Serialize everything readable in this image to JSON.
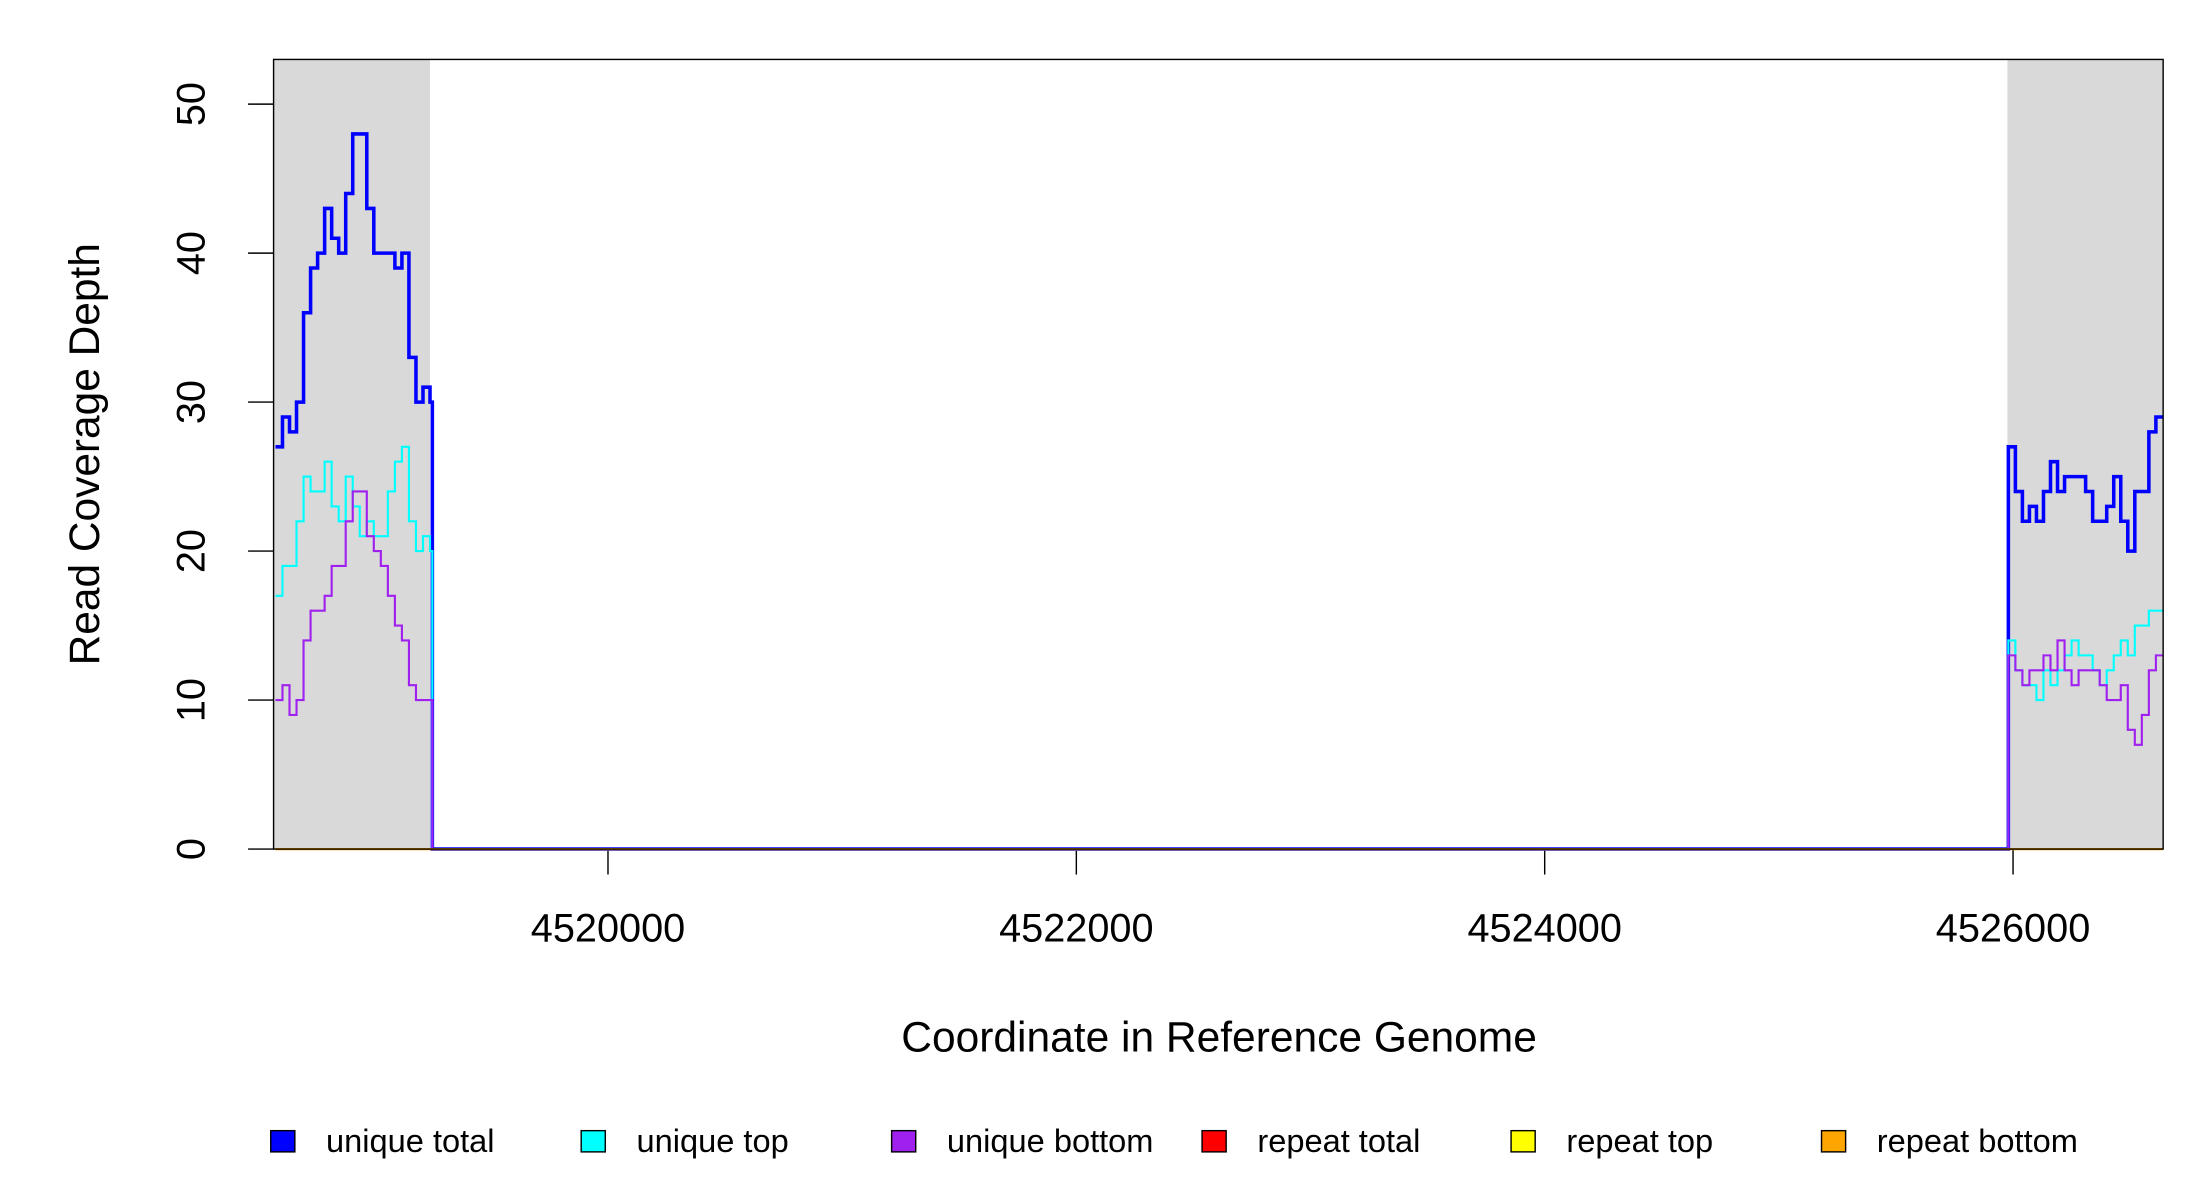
{
  "chart_data": {
    "type": "step",
    "xlabel": "Coordinate in Reference Genome",
    "ylabel": "Read Coverage Depth",
    "xlim": [
      4518572,
      4526641
    ],
    "ylim": [
      0,
      53
    ],
    "xticks": [
      4520000,
      4522000,
      4524000,
      4526000
    ],
    "yticks": [
      0,
      10,
      20,
      30,
      40,
      50
    ],
    "shaded_regions": [
      [
        4518572,
        4519240
      ],
      [
        4525976,
        4526641
      ]
    ],
    "shade_color": "#d9d9d9",
    "x": [
      4518580,
      4518610,
      4518640,
      4518670,
      4518700,
      4518730,
      4518760,
      4518790,
      4518820,
      4518850,
      4518880,
      4518910,
      4518940,
      4518970,
      4519000,
      4519030,
      4519060,
      4519090,
      4519120,
      4519150,
      4519180,
      4519210,
      4519240,
      4519250,
      4525970,
      4525980,
      4526010,
      4526040,
      4526070,
      4526100,
      4526130,
      4526160,
      4526190,
      4526220,
      4526250,
      4526280,
      4526310,
      4526340,
      4526370,
      4526400,
      4526430,
      4526460,
      4526490,
      4526520,
      4526550,
      4526580,
      4526610,
      4526640
    ],
    "series": [
      {
        "name": "unique total",
        "color": "#0000ff",
        "width": 2.5,
        "values": [
          27,
          29,
          28,
          30,
          36,
          39,
          40,
          43,
          41,
          40,
          44,
          48,
          48,
          43,
          40,
          40,
          40,
          39,
          40,
          33,
          30,
          31,
          30,
          0,
          0,
          27,
          24,
          22,
          23,
          22,
          24,
          26,
          24,
          25,
          25,
          25,
          24,
          22,
          22,
          23,
          25,
          22,
          20,
          24,
          24,
          28,
          29,
          29
        ]
      },
      {
        "name": "unique top",
        "color": "#00ffff",
        "width": 1.5,
        "values": [
          17,
          19,
          19,
          22,
          25,
          24,
          24,
          26,
          23,
          22,
          25,
          23,
          21,
          22,
          21,
          21,
          24,
          26,
          27,
          22,
          20,
          21,
          20,
          0,
          0,
          14,
          12,
          11,
          11,
          10,
          12,
          11,
          12,
          13,
          14,
          13,
          13,
          12,
          11,
          12,
          13,
          14,
          13,
          15,
          15,
          16,
          16,
          16
        ]
      },
      {
        "name": "unique bottom",
        "color": "#a020f0",
        "width": 1.5,
        "values": [
          10,
          11,
          9,
          10,
          14,
          16,
          16,
          17,
          19,
          19,
          22,
          24,
          24,
          21,
          20,
          19,
          17,
          15,
          14,
          11,
          10,
          10,
          10,
          0,
          0,
          13,
          12,
          11,
          12,
          12,
          13,
          12,
          14,
          12,
          11,
          12,
          12,
          12,
          11,
          10,
          10,
          11,
          8,
          7,
          9,
          12,
          13,
          13
        ]
      },
      {
        "name": "repeat total",
        "color": "#ff0000",
        "width": 1.5,
        "values": [
          0,
          0,
          0,
          0,
          0,
          0,
          0,
          0,
          0,
          0,
          0,
          0,
          0,
          0,
          0,
          0,
          0,
          0,
          0,
          0,
          0,
          0,
          0,
          0,
          0,
          0,
          0,
          0,
          0,
          0,
          0,
          0,
          0,
          0,
          0,
          0,
          0,
          0,
          0,
          0,
          0,
          0,
          0,
          0,
          0,
          0,
          0,
          0
        ]
      },
      {
        "name": "repeat top",
        "color": "#ffff00",
        "width": 1.5,
        "values": [
          0,
          0,
          0,
          0,
          0,
          0,
          0,
          0,
          0,
          0,
          0,
          0,
          0,
          0,
          0,
          0,
          0,
          0,
          0,
          0,
          0,
          0,
          0,
          0,
          0,
          0,
          0,
          0,
          0,
          0,
          0,
          0,
          0,
          0,
          0,
          0,
          0,
          0,
          0,
          0,
          0,
          0,
          0,
          0,
          0,
          0,
          0,
          0
        ]
      },
      {
        "name": "repeat bottom",
        "color": "#ffa500",
        "width": 1.5,
        "values": [
          0,
          0,
          0,
          0,
          0,
          0,
          0,
          0,
          0,
          0,
          0,
          0,
          0,
          0,
          0,
          0,
          0,
          0,
          0,
          0,
          0,
          0,
          0,
          0,
          0,
          0,
          0,
          0,
          0,
          0,
          0,
          0,
          0,
          0,
          0,
          0,
          0,
          0,
          0,
          0,
          0,
          0,
          0,
          0,
          0,
          0,
          0,
          0
        ]
      }
    ]
  }
}
